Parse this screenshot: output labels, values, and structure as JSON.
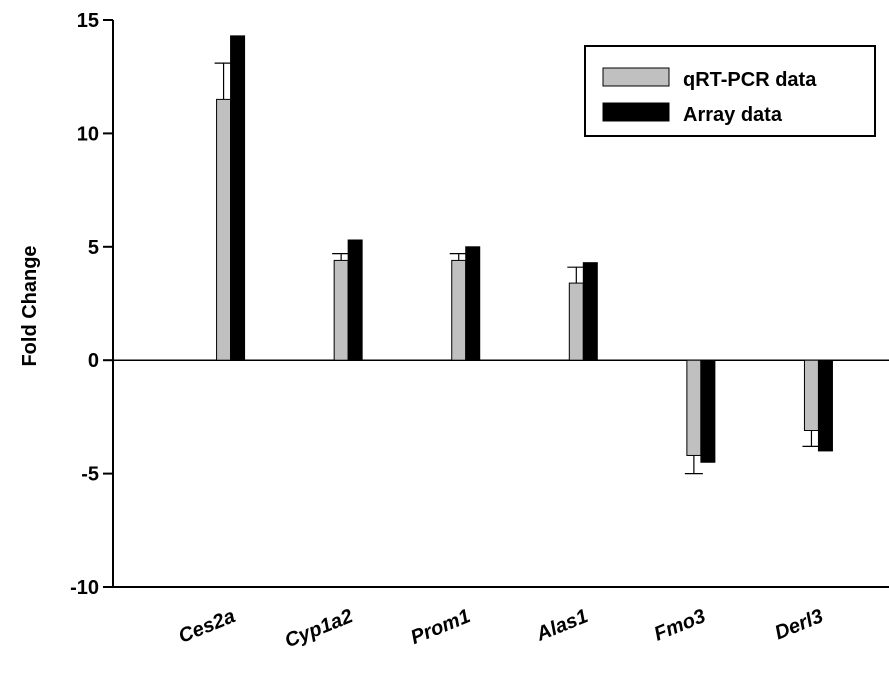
{
  "chart_data": {
    "type": "bar",
    "categories": [
      "Ces2a",
      "Cyp1a2",
      "Prom1",
      "Alas1",
      "Fmo3",
      "Derl3"
    ],
    "series": [
      {
        "name": "qRT-PCR data",
        "color": "#c0c0c0",
        "values": [
          11.5,
          4.4,
          4.4,
          3.4,
          -4.2,
          -3.1
        ],
        "error": [
          1.6,
          0.3,
          0.3,
          0.7,
          0.8,
          0.7
        ]
      },
      {
        "name": "Array data",
        "color": "#000000",
        "values": [
          14.3,
          5.3,
          5.0,
          4.3,
          -4.5,
          -4.0
        ]
      }
    ],
    "ylabel": "Fold Change",
    "xlabel": "",
    "title": "",
    "ylim": [
      -10,
      15
    ],
    "yticks": [
      -10,
      -5,
      0,
      5,
      10,
      15
    ],
    "grid": false,
    "legend_position": "top-right",
    "zero_line": true
  }
}
